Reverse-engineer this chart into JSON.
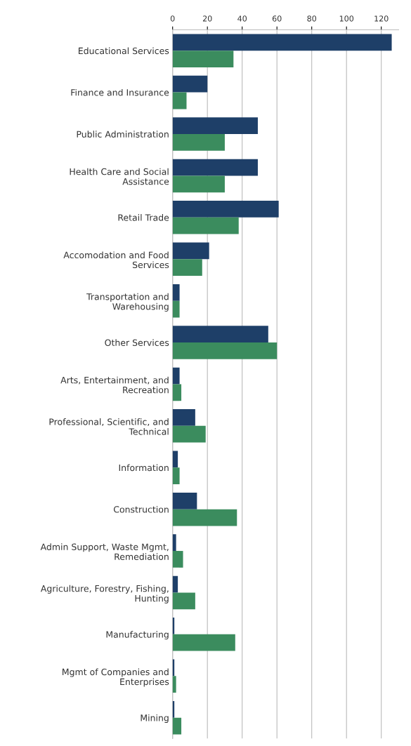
{
  "chart_data": {
    "type": "bar",
    "orientation": "horizontal",
    "categories": [
      "Educational Services",
      "Finance and Insurance",
      "Public Administration",
      "Health Care and Social\nAssistance",
      "Retail Trade",
      "Accomodation and Food\nServices",
      "Transportation and\nWarehousing",
      "Other Services",
      "Arts, Entertainment, and\nRecreation",
      "Professional, Scientific, and\nTechnical",
      "Information",
      "Construction",
      "Admin Support, Waste Mgmt,\nRemediation",
      "Agriculture, Forestry, Fishing,\nHunting",
      "Manufacturing",
      "Mgmt of Companies and\nEnterprises",
      "Mining"
    ],
    "series": [
      {
        "color": "#1e3f68",
        "values": [
          126,
          20,
          49,
          49,
          61,
          21,
          4,
          55,
          4,
          13,
          3,
          14,
          2,
          3,
          1,
          1,
          1
        ]
      },
      {
        "color": "#3b8c5e",
        "values": [
          35,
          8,
          30,
          30,
          38,
          17,
          4,
          60,
          5,
          19,
          4,
          37,
          6,
          13,
          36,
          2,
          5
        ]
      }
    ],
    "xlim": [
      0,
      130
    ],
    "xticks": [
      0,
      20,
      40,
      60,
      80,
      100,
      120
    ],
    "grid": "x",
    "legend": false
  }
}
